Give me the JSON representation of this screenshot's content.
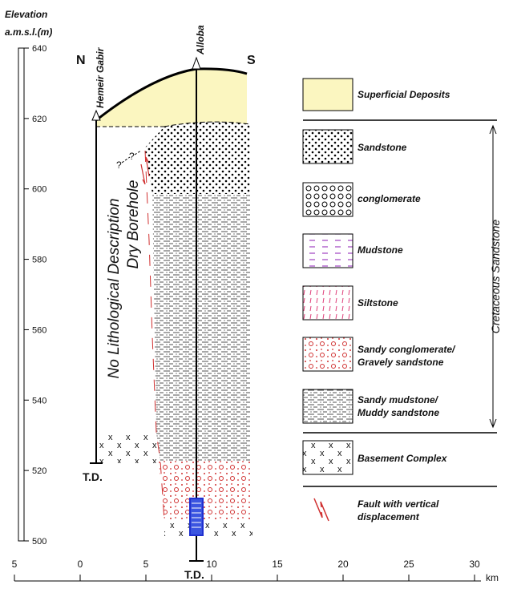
{
  "axis": {
    "title": [
      "Elevation",
      "a.m.s.l.(m)"
    ],
    "elevation_ticks": [
      640,
      620,
      600,
      580,
      560,
      540,
      520,
      500
    ],
    "km_ticks": [
      {
        "value": -5,
        "label": "5"
      },
      0,
      5,
      10,
      15,
      20,
      25,
      30
    ],
    "km_unit": "km"
  },
  "section": {
    "direction_left": "N",
    "direction_right": "S",
    "boreholes": [
      {
        "name": "Hemeir Gabir",
        "td": "T.D."
      },
      {
        "name": "Alloba",
        "td": "T.D."
      }
    ],
    "annotation": [
      "No Lithological Description",
      "Dry Borehole"
    ],
    "question_marks": [
      "?",
      "?"
    ]
  },
  "legend": {
    "items": [
      {
        "label": [
          "Superficial Deposits"
        ]
      },
      {
        "label": [
          "Sandstone"
        ]
      },
      {
        "label": [
          "conglomerate"
        ]
      },
      {
        "label": [
          "Mudstone"
        ]
      },
      {
        "label": [
          "Siltstone"
        ]
      },
      {
        "label": [
          "Sandy conglomerate/",
          "Gravely sandstone"
        ]
      },
      {
        "label": [
          "Sandy mudstone/",
          "Muddy sandstone"
        ]
      },
      {
        "label": [
          "Basement Complex"
        ]
      },
      {
        "label": [
          "Fault with vertical",
          "displacement"
        ]
      }
    ],
    "group_label": "Cretaceous Sandstone"
  }
}
